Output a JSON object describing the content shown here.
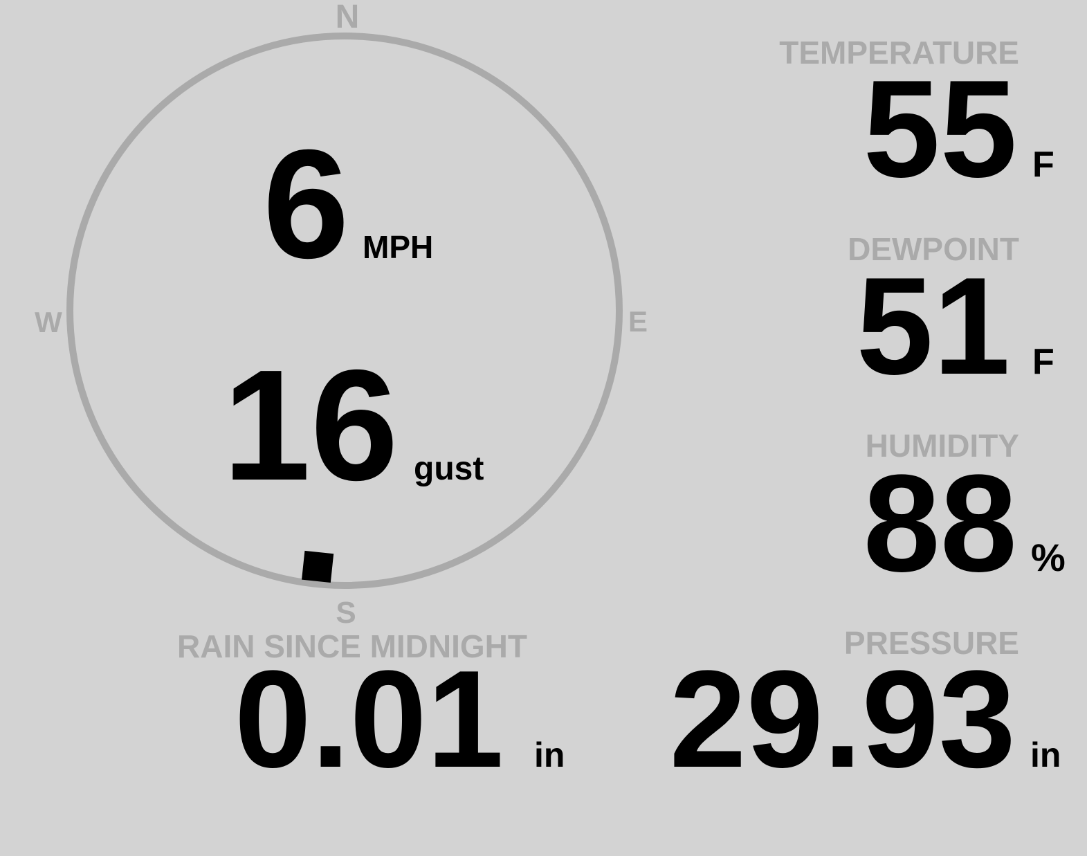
{
  "compass": {
    "north": "N",
    "south": "S",
    "east": "E",
    "west": "W",
    "wind_direction_deg": 186
  },
  "wind": {
    "speed": "6",
    "speed_unit": "MPH",
    "gust": "16",
    "gust_label": "gust"
  },
  "temperature": {
    "label": "TEMPERATURE",
    "value": "55",
    "unit": "F"
  },
  "dewpoint": {
    "label": "DEWPOINT",
    "value": "51",
    "unit": "F"
  },
  "humidity": {
    "label": "HUMIDITY",
    "value": "88",
    "unit": "%"
  },
  "pressure": {
    "label": "PRESSURE",
    "value": "29.93",
    "unit": "in"
  },
  "rain": {
    "label": "RAIN SINCE MIDNIGHT",
    "value": "0.01",
    "unit": "in"
  },
  "colors": {
    "background": "#d3d3d3",
    "label": "#aaaaaa",
    "value": "#000000",
    "dial": "#aaaaaa"
  }
}
